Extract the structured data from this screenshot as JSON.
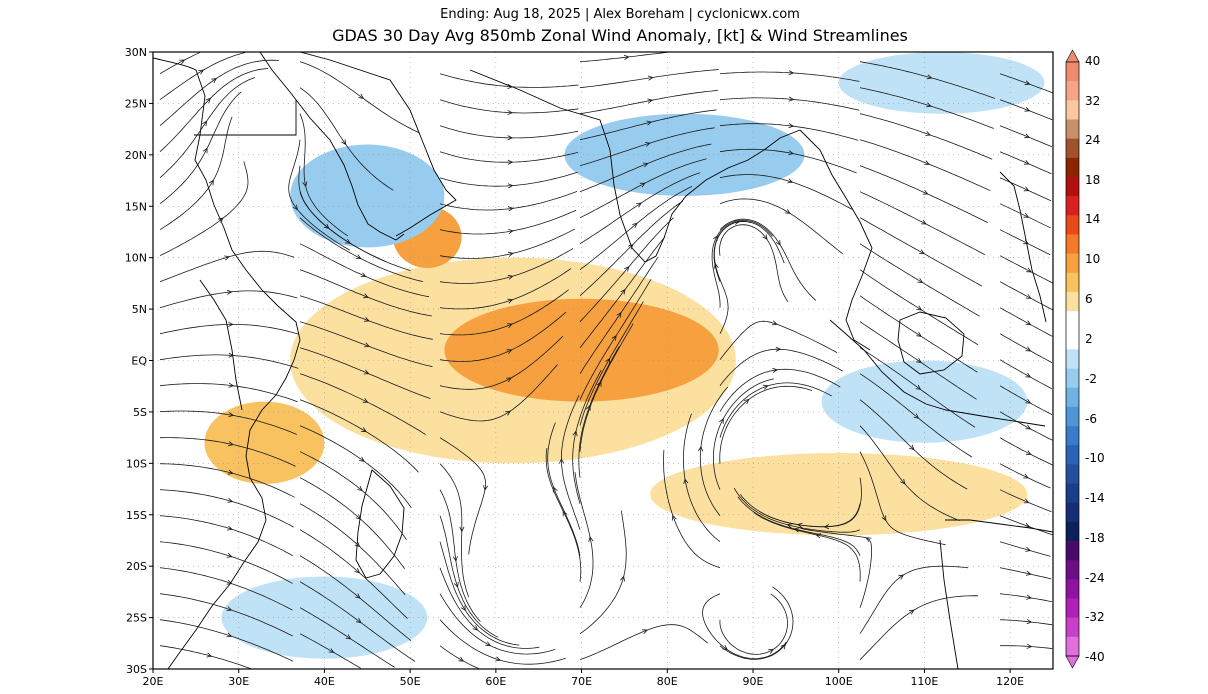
{
  "header": {
    "subtitle": "Ending: Aug 18, 2025 | Alex Boreham | cyclonicwx.com",
    "title": "GDAS 30 Day Avg 850mb Zonal Wind Anomaly, [kt] & Wind Streamlines"
  },
  "map": {
    "lon_range": [
      20,
      125
    ],
    "lat_range": [
      -30,
      30
    ],
    "lon_ticks": [
      "20E",
      "30E",
      "40E",
      "50E",
      "60E",
      "70E",
      "80E",
      "90E",
      "100E",
      "110E",
      "120E"
    ],
    "lat_ticks": [
      "30N",
      "25N",
      "20N",
      "15N",
      "10N",
      "5N",
      "EQ",
      "5S",
      "10S",
      "15S",
      "20S",
      "25S",
      "30S"
    ],
    "anomaly_regions": [
      {
        "kind": "positive",
        "level": 2,
        "lon": 62,
        "lat": 0,
        "rx": 26,
        "ry": 10
      },
      {
        "kind": "positive",
        "level": 6,
        "lon": 70,
        "lat": 1,
        "rx": 16,
        "ry": 5
      },
      {
        "kind": "positive",
        "level": 6,
        "lon": 52,
        "lat": 12,
        "rx": 4,
        "ry": 3
      },
      {
        "kind": "positive",
        "level": 4,
        "lon": 33,
        "lat": -8,
        "rx": 7,
        "ry": 4
      },
      {
        "kind": "positive",
        "level": 2,
        "lon": 100,
        "lat": -13,
        "rx": 22,
        "ry": 4
      },
      {
        "kind": "negative",
        "level": -4,
        "lon": 45,
        "lat": 16,
        "rx": 9,
        "ry": 5
      },
      {
        "kind": "negative",
        "level": -4,
        "lon": 82,
        "lat": 20,
        "rx": 14,
        "ry": 4
      },
      {
        "kind": "negative",
        "level": -2,
        "lon": 110,
        "lat": -4,
        "rx": 12,
        "ry": 4
      },
      {
        "kind": "negative",
        "level": -2,
        "lon": 40,
        "lat": -25,
        "rx": 12,
        "ry": 4
      },
      {
        "kind": "negative",
        "level": -2,
        "lon": 112,
        "lat": 27,
        "rx": 12,
        "ry": 3
      }
    ]
  },
  "colorbar": {
    "labels": [
      "40",
      "32",
      "24",
      "18",
      "14",
      "10",
      "6",
      "2",
      "-2",
      "-6",
      "-10",
      "-14",
      "-18",
      "-24",
      "-32",
      "-40"
    ],
    "colors": [
      "#f08a70",
      "#f4a585",
      "#f9c8a0",
      "#c8906a",
      "#a0522d",
      "#8b2500",
      "#b01010",
      "#d82020",
      "#e84a1a",
      "#f27a28",
      "#f6a040",
      "#f8c260",
      "#fbe0a0",
      "#ffffff",
      "#ffffff",
      "#c0e2f6",
      "#98ccee",
      "#70b2e2",
      "#4e96d6",
      "#3a7cc8",
      "#2a62b4",
      "#22509e",
      "#1a3e88",
      "#142e72",
      "#0e205c",
      "#4a0a6a",
      "#6e0e86",
      "#9012a0",
      "#b020b6",
      "#c840c8",
      "#e070dc"
    ]
  }
}
